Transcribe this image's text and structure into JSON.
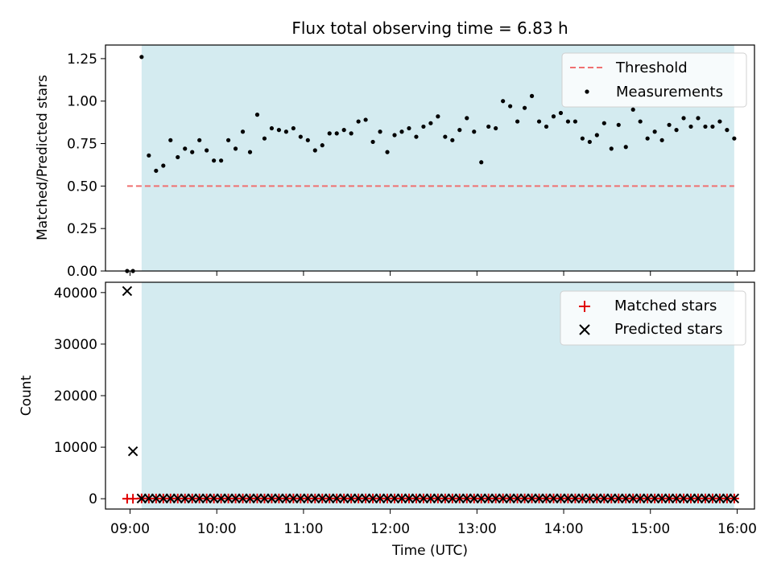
{
  "title": "Flux total observing time = 6.83 h",
  "colors": {
    "observing_span": "#d4ebf0",
    "threshold": "#f07070",
    "measurement": "#000000",
    "matched": "#e00000",
    "predicted": "#000000"
  },
  "chart_data": [
    {
      "type": "scatter",
      "panel": "top",
      "title": "",
      "xlabel": "",
      "ylabel": "Matched/Predicted stars",
      "xlim": [
        "08:43",
        "16:12"
      ],
      "ylim": [
        0,
        1.33
      ],
      "yticks": [
        0.0,
        0.25,
        0.5,
        0.75,
        1.0,
        1.25
      ],
      "ytick_labels": [
        "0.00",
        "0.25",
        "0.50",
        "0.75",
        "1.00",
        "1.25"
      ],
      "observing_span": [
        "09:08",
        "15:58"
      ],
      "legend_placement": "upper right",
      "threshold": {
        "name": "Threshold",
        "y": 0.5,
        "x_range": [
          "08:58",
          "15:58"
        ]
      },
      "series": [
        {
          "name": "Measurements",
          "x": [
            "08:58",
            "09:02",
            "09:08",
            "09:13",
            "09:18",
            "09:23",
            "09:28",
            "09:33",
            "09:38",
            "09:43",
            "09:48",
            "09:53",
            "09:58",
            "10:03",
            "10:08",
            "10:13",
            "10:18",
            "10:23",
            "10:28",
            "10:33",
            "10:38",
            "10:43",
            "10:48",
            "10:53",
            "10:58",
            "11:03",
            "11:08",
            "11:13",
            "11:18",
            "11:23",
            "11:28",
            "11:33",
            "11:38",
            "11:43",
            "11:48",
            "11:53",
            "11:58",
            "12:03",
            "12:08",
            "12:13",
            "12:18",
            "12:23",
            "12:28",
            "12:33",
            "12:38",
            "12:43",
            "12:48",
            "12:53",
            "12:58",
            "13:03",
            "13:08",
            "13:13",
            "13:18",
            "13:23",
            "13:28",
            "13:33",
            "13:38",
            "13:43",
            "13:48",
            "13:53",
            "13:58",
            "14:03",
            "14:08",
            "14:13",
            "14:18",
            "14:23",
            "14:28",
            "14:33",
            "14:38",
            "14:43",
            "14:48",
            "14:53",
            "14:58",
            "15:03",
            "15:08",
            "15:13",
            "15:18",
            "15:23",
            "15:28",
            "15:33",
            "15:38",
            "15:43",
            "15:48",
            "15:53",
            "15:58"
          ],
          "y": [
            0.0,
            0.0,
            1.26,
            0.68,
            0.59,
            0.62,
            0.77,
            0.67,
            0.72,
            0.7,
            0.77,
            0.71,
            0.65,
            0.65,
            0.77,
            0.72,
            0.82,
            0.7,
            0.92,
            0.78,
            0.84,
            0.83,
            0.82,
            0.84,
            0.79,
            0.77,
            0.71,
            0.74,
            0.81,
            0.81,
            0.83,
            0.81,
            0.88,
            0.89,
            0.76,
            0.82,
            0.7,
            0.8,
            0.82,
            0.84,
            0.79,
            0.85,
            0.87,
            0.91,
            0.79,
            0.77,
            0.83,
            0.9,
            0.82,
            0.64,
            0.85,
            0.84,
            1.0,
            0.97,
            0.88,
            0.96,
            1.03,
            0.88,
            0.85,
            0.91,
            0.93,
            0.88,
            0.88,
            0.78,
            0.76,
            0.8,
            0.87,
            0.72,
            0.86,
            0.73,
            0.95,
            0.88,
            0.78,
            0.82,
            0.77,
            0.86,
            0.83,
            0.9,
            0.85,
            0.9,
            0.85,
            0.85,
            0.88,
            0.83,
            0.78
          ]
        }
      ]
    },
    {
      "type": "scatter",
      "panel": "bottom",
      "title": "",
      "xlabel": "Time (UTC)",
      "ylabel": "Count",
      "xlim": [
        "08:43",
        "16:12"
      ],
      "ylim": [
        -2000,
        42000
      ],
      "yticks": [
        0,
        10000,
        20000,
        30000,
        40000
      ],
      "ytick_labels": [
        "0",
        "10000",
        "20000",
        "30000",
        "40000"
      ],
      "xticks": [
        "09:00",
        "10:00",
        "11:00",
        "12:00",
        "13:00",
        "14:00",
        "15:00",
        "16:00"
      ],
      "observing_span": [
        "09:08",
        "15:58"
      ],
      "legend_placement": "upper right",
      "series": [
        {
          "name": "Matched stars",
          "marker": "plus",
          "x": [
            "08:58",
            "09:02",
            "09:08",
            "09:13",
            "09:18",
            "09:23",
            "09:28",
            "09:33",
            "09:38",
            "09:43",
            "09:48",
            "09:53",
            "09:58",
            "10:03",
            "10:08",
            "10:13",
            "10:18",
            "10:23",
            "10:28",
            "10:33",
            "10:38",
            "10:43",
            "10:48",
            "10:53",
            "10:58",
            "11:03",
            "11:08",
            "11:13",
            "11:18",
            "11:23",
            "11:28",
            "11:33",
            "11:38",
            "11:43",
            "11:48",
            "11:53",
            "11:58",
            "12:03",
            "12:08",
            "12:13",
            "12:18",
            "12:23",
            "12:28",
            "12:33",
            "12:38",
            "12:43",
            "12:48",
            "12:53",
            "12:58",
            "13:03",
            "13:08",
            "13:13",
            "13:18",
            "13:23",
            "13:28",
            "13:33",
            "13:38",
            "13:43",
            "13:48",
            "13:53",
            "13:58",
            "14:03",
            "14:08",
            "14:13",
            "14:18",
            "14:23",
            "14:28",
            "14:33",
            "14:38",
            "14:43",
            "14:48",
            "14:53",
            "14:58",
            "15:03",
            "15:08",
            "15:13",
            "15:18",
            "15:23",
            "15:28",
            "15:33",
            "15:38",
            "15:43",
            "15:48",
            "15:53",
            "15:58"
          ],
          "y": [
            0,
            0,
            60,
            40,
            35,
            38,
            45,
            40,
            42,
            42,
            45,
            42,
            40,
            40,
            45,
            43,
            48,
            42,
            55,
            46,
            50,
            49,
            48,
            50,
            47,
            46,
            42,
            44,
            48,
            48,
            49,
            48,
            52,
            53,
            45,
            49,
            42,
            48,
            49,
            50,
            47,
            51,
            52,
            54,
            47,
            46,
            49,
            53,
            49,
            38,
            50,
            50,
            59,
            57,
            52,
            57,
            61,
            52,
            50,
            54,
            55,
            52,
            52,
            46,
            45,
            47,
            51,
            43,
            51,
            43,
            56,
            52,
            46,
            49,
            46,
            51,
            49,
            53,
            50,
            53,
            50,
            50,
            52,
            49,
            46
          ]
        },
        {
          "name": "Predicted stars",
          "marker": "x",
          "x": [
            "08:58",
            "09:02",
            "09:08",
            "09:13",
            "09:18",
            "09:23",
            "09:28",
            "09:33",
            "09:38",
            "09:43",
            "09:48",
            "09:53",
            "09:58",
            "10:03",
            "10:08",
            "10:13",
            "10:18",
            "10:23",
            "10:28",
            "10:33",
            "10:38",
            "10:43",
            "10:48",
            "10:53",
            "10:58",
            "11:03",
            "11:08",
            "11:13",
            "11:18",
            "11:23",
            "11:28",
            "11:33",
            "11:38",
            "11:43",
            "11:48",
            "11:53",
            "11:58",
            "12:03",
            "12:08",
            "12:13",
            "12:18",
            "12:23",
            "12:28",
            "12:33",
            "12:38",
            "12:43",
            "12:48",
            "12:53",
            "12:58",
            "13:03",
            "13:08",
            "13:13",
            "13:18",
            "13:23",
            "13:28",
            "13:33",
            "13:38",
            "13:43",
            "13:48",
            "13:53",
            "13:58",
            "14:03",
            "14:08",
            "14:13",
            "14:18",
            "14:23",
            "14:28",
            "14:33",
            "14:38",
            "14:43",
            "14:48",
            "14:53",
            "14:58",
            "15:03",
            "15:08",
            "15:13",
            "15:18",
            "15:23",
            "15:28",
            "15:33",
            "15:38",
            "15:43",
            "15:48",
            "15:53",
            "15:58"
          ],
          "y": [
            40300,
            9200,
            48,
            59,
            59,
            61,
            58,
            60,
            58,
            60,
            58,
            59,
            62,
            61,
            58,
            60,
            59,
            60,
            60,
            59,
            60,
            59,
            59,
            60,
            59,
            60,
            59,
            59,
            59,
            59,
            59,
            59,
            59,
            60,
            59,
            60,
            60,
            60,
            60,
            60,
            59,
            60,
            60,
            59,
            59,
            60,
            59,
            59,
            60,
            59,
            59,
            60,
            59,
            59,
            59,
            59,
            59,
            59,
            59,
            59,
            59,
            59,
            59,
            59,
            59,
            59,
            59,
            60,
            59,
            59,
            59,
            59,
            59,
            60,
            60,
            59,
            59,
            59,
            59,
            59,
            59,
            59,
            59,
            59,
            59
          ]
        }
      ]
    }
  ]
}
